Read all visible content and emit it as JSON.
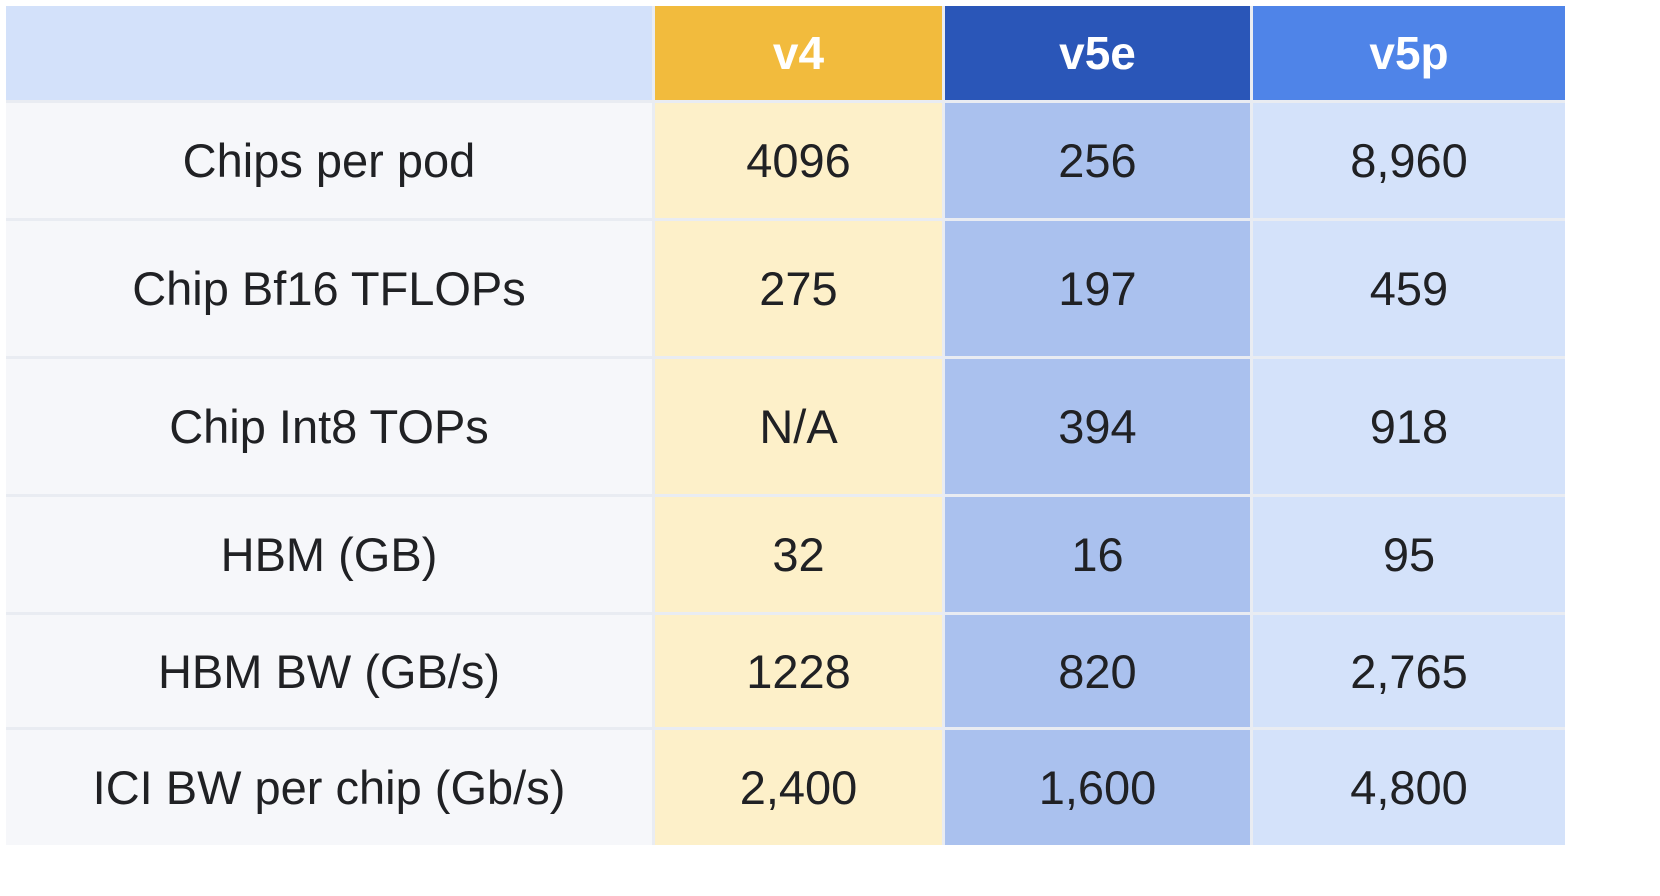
{
  "table": {
    "headers": [
      "",
      "v4",
      "v5e",
      "v5p"
    ],
    "rows": [
      {
        "label": "Chips per pod",
        "values": [
          "4096",
          "256",
          "8,960"
        ]
      },
      {
        "label": "Chip Bf16 TFLOPs",
        "values": [
          "275",
          "197",
          "459"
        ]
      },
      {
        "label": "Chip Int8 TOPs",
        "values": [
          "N/A",
          "394",
          "918"
        ]
      },
      {
        "label": "HBM (GB)",
        "values": [
          "32",
          "16",
          "95"
        ]
      },
      {
        "label": "HBM BW (GB/s)",
        "values": [
          "1228",
          "820",
          "2,765"
        ]
      },
      {
        "label": "ICI BW per chip (Gb/s)",
        "values": [
          "2,400",
          "1,600",
          "4,800"
        ]
      }
    ],
    "colors": {
      "v4_header": "#f2bb3d",
      "v4_cell": "#fdf0c9",
      "v5e_header": "#2a56b8",
      "v5e_cell": "#aac1ee",
      "v5p_header": "#4f84e8",
      "v5p_cell": "#d4e2fa",
      "label_header": "#d3e1fa",
      "label_cell": "#f6f7fa"
    }
  },
  "chart_data": {
    "type": "table",
    "title": "",
    "columns": [
      "",
      "v4",
      "v5e",
      "v5p"
    ],
    "rows": [
      [
        "Chips per pod",
        "4096",
        "256",
        "8,960"
      ],
      [
        "Chip Bf16 TFLOPs",
        "275",
        "197",
        "459"
      ],
      [
        "Chip Int8 TOPs",
        "N/A",
        "394",
        "918"
      ],
      [
        "HBM (GB)",
        "32",
        "16",
        "95"
      ],
      [
        "HBM BW (GB/s)",
        "1228",
        "820",
        "2,765"
      ],
      [
        "ICI BW per chip (Gb/s)",
        "2,400",
        "1,600",
        "4,800"
      ]
    ]
  }
}
